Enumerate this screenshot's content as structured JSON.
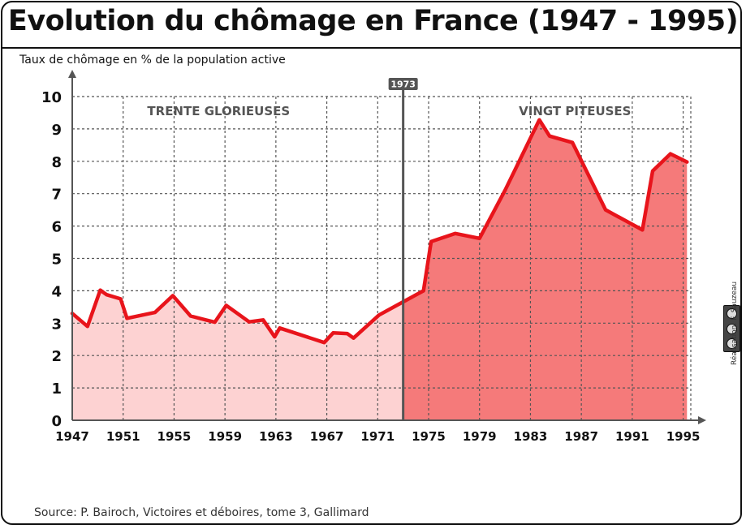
{
  "header": {
    "title": "Evolution du chômage en France (1947 - 1995)",
    "ylabel": "Taux de chômage en % de la population active"
  },
  "footer": {
    "source": "Source: P. Bairoch, Victoires et déboires, tome 3, Gallimard",
    "credit": "Réalisation: F. Sauzeau"
  },
  "license_icon": "cc-by-nc-sa-badge",
  "colors": {
    "line": "#e8141b",
    "fill_before": "#fdd2d2",
    "fill_after": "#f57a7a",
    "marker": "#555555",
    "grid": "#555555"
  },
  "chart_data": {
    "type": "area",
    "xlim": [
      1947,
      1995.6
    ],
    "ylim": [
      0,
      10
    ],
    "x_ticks": [
      "1947",
      "1951",
      "1955",
      "1959",
      "1963",
      "1967",
      "1971",
      "1975",
      "1979",
      "1983",
      "1987",
      "1991",
      "1995"
    ],
    "y_ticks": [
      "0",
      "1",
      "2",
      "3",
      "4",
      "5",
      "6",
      "7",
      "8",
      "9",
      "10"
    ],
    "grid": true,
    "marker": {
      "x": 1973,
      "label": "1973"
    },
    "annotations": [
      {
        "text": "TRENTE GLORIEUSES",
        "x": 1958.5,
        "y": 9.55
      },
      {
        "text": "VINGT PITEUSES",
        "x": 1986.5,
        "y": 9.55
      }
    ],
    "series": [
      {
        "x": [
          1947,
          1948.2,
          1949.2,
          1949.7,
          1950.8,
          1951.3,
          1953.5,
          1954.9,
          1956.3,
          1958.2,
          1959.1,
          1960.9,
          1962.0,
          1962.9,
          1963.3,
          1966.8,
          1967.5,
          1968.6,
          1969.1,
          1971.1,
          1973.0,
          1974.6,
          1975.2,
          1977.1,
          1979.0,
          1981.0,
          1983.7,
          1984.5,
          1986.3,
          1988.9,
          1991.8,
          1992.6,
          1994.0,
          1995.3
        ],
        "y": [
          3.3,
          2.9,
          4.02,
          3.88,
          3.75,
          3.15,
          3.33,
          3.85,
          3.22,
          3.03,
          3.55,
          3.04,
          3.1,
          2.58,
          2.85,
          2.4,
          2.7,
          2.68,
          2.54,
          3.25,
          3.66,
          4.0,
          5.52,
          5.77,
          5.62,
          7.1,
          9.28,
          8.78,
          8.58,
          6.5,
          5.88,
          7.7,
          8.23,
          7.98
        ]
      }
    ]
  }
}
